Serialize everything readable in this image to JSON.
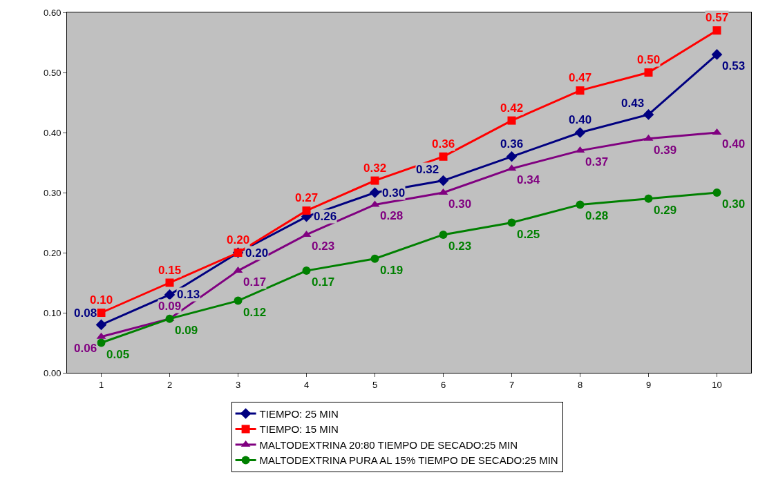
{
  "chart_data": {
    "type": "line",
    "categories": [
      "1",
      "2",
      "3",
      "4",
      "5",
      "6",
      "7",
      "8",
      "9",
      "10"
    ],
    "ylim": [
      0,
      0.6
    ],
    "yticks": [
      {
        "value": 0,
        "label": "0.00"
      },
      {
        "value": 0.1,
        "label": "0.10"
      },
      {
        "value": 0.2,
        "label": "0.20"
      },
      {
        "value": 0.3,
        "label": "0.30"
      },
      {
        "value": 0.4,
        "label": "0.40"
      },
      {
        "value": 0.5,
        "label": "0.50"
      },
      {
        "value": 0.6,
        "label": "0.60"
      }
    ],
    "grid": false,
    "legend": "bottom",
    "line_style": "solid",
    "series": [
      {
        "name": "TIEMPO: 25 MIN",
        "color": "#000080",
        "marker": "diamond",
        "values": [
          0.08,
          0.13,
          0.2,
          0.26,
          0.3,
          0.32,
          0.36,
          0.4,
          0.43,
          0.53
        ],
        "value_labels": [
          "0.08",
          "0.13",
          "0.20",
          "0.26",
          "0.30",
          "0.32",
          "0.36",
          "0.40",
          "0.43",
          "0.53"
        ]
      },
      {
        "name": "TIEMPO: 15 MIN",
        "color": "#ff0000",
        "marker": "square",
        "values": [
          0.1,
          0.15,
          0.2,
          0.27,
          0.32,
          0.36,
          0.42,
          0.47,
          0.5,
          0.57
        ],
        "value_labels": [
          "0.10",
          "0.15",
          "0.20",
          "0.27",
          "0.32",
          "0.36",
          "0.42",
          "0.47",
          "0.50",
          "0.57"
        ]
      },
      {
        "name": "MALTODEXTRINA 20:80 TIEMPO DE SECADO:25 MIN",
        "color": "#800080",
        "marker": "triangle",
        "values": [
          0.06,
          0.09,
          0.17,
          0.23,
          0.28,
          0.3,
          0.34,
          0.37,
          0.39,
          0.4
        ],
        "value_labels": [
          "0.06",
          "0.09",
          "0.17",
          "0.23",
          "0.28",
          "0.30",
          "0.34",
          "0.37",
          "0.39",
          "0.40"
        ]
      },
      {
        "name": "MALTODEXTRINA PURA AL 15% TIEMPO DE SECADO:25 MIN",
        "color": "#008000",
        "marker": "circle",
        "values": [
          0.05,
          0.09,
          0.12,
          0.17,
          0.19,
          0.23,
          0.25,
          0.28,
          0.29,
          0.3
        ],
        "value_labels": [
          "0.05",
          "0.09",
          "0.12",
          "0.17",
          "0.19",
          "0.23",
          "0.25",
          "0.28",
          "0.29",
          "0.30"
        ]
      }
    ]
  }
}
